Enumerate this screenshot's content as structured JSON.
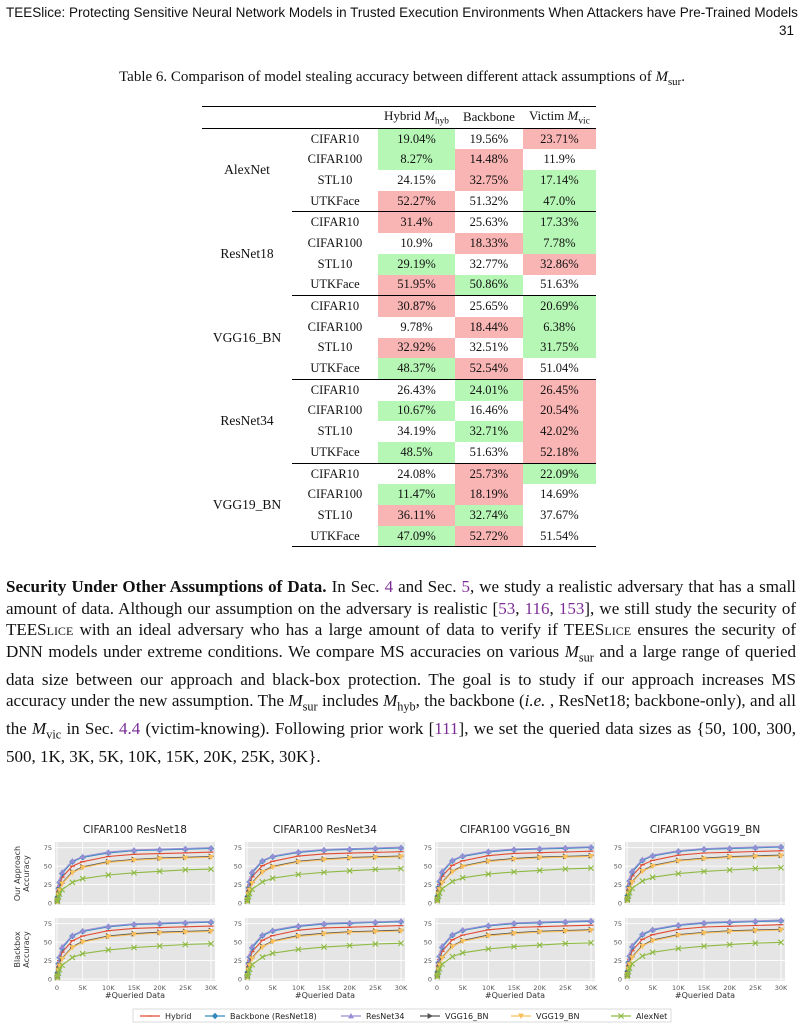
{
  "header": {
    "title": "TEESlice: Protecting Sensitive Neural Network Models in Trusted Execution Environments When Attackers have Pre-Trained Models",
    "page": "31"
  },
  "table": {
    "caption": "Table 6.  Comparison of model stealing accuracy between different attack assumptions of M_sur.",
    "columns": [
      "Hybrid M_hyb",
      "Backbone",
      "Victim M_vic"
    ],
    "groups": [
      {
        "model": "AlexNet",
        "rows": [
          {
            "dataset": "CIFAR10",
            "values": [
              "19.04%",
              "19.56%",
              "23.71%"
            ],
            "colors": [
              "g",
              "",
              "r"
            ]
          },
          {
            "dataset": "CIFAR100",
            "values": [
              "8.27%",
              "14.48%",
              "11.9%"
            ],
            "colors": [
              "g",
              "r",
              ""
            ]
          },
          {
            "dataset": "STL10",
            "values": [
              "24.15%",
              "32.75%",
              "17.14%"
            ],
            "colors": [
              "",
              "r",
              "g"
            ]
          },
          {
            "dataset": "UTKFace",
            "values": [
              "52.27%",
              "51.32%",
              "47.0%"
            ],
            "colors": [
              "r",
              "",
              "g"
            ]
          }
        ]
      },
      {
        "model": "ResNet18",
        "rows": [
          {
            "dataset": "CIFAR10",
            "values": [
              "31.4%",
              "25.63%",
              "17.33%"
            ],
            "colors": [
              "r",
              "",
              "g"
            ]
          },
          {
            "dataset": "CIFAR100",
            "values": [
              "10.9%",
              "18.33%",
              "7.78%"
            ],
            "colors": [
              "",
              "r",
              "g"
            ]
          },
          {
            "dataset": "STL10",
            "values": [
              "29.19%",
              "32.77%",
              "32.86%"
            ],
            "colors": [
              "g",
              "",
              "r"
            ]
          },
          {
            "dataset": "UTKFace",
            "values": [
              "51.95%",
              "50.86%",
              "51.63%"
            ],
            "colors": [
              "r",
              "g",
              ""
            ]
          }
        ]
      },
      {
        "model": "VGG16_BN",
        "rows": [
          {
            "dataset": "CIFAR10",
            "values": [
              "30.87%",
              "25.65%",
              "20.69%"
            ],
            "colors": [
              "r",
              "",
              "g"
            ]
          },
          {
            "dataset": "CIFAR100",
            "values": [
              "9.78%",
              "18.44%",
              "6.38%"
            ],
            "colors": [
              "",
              "r",
              "g"
            ]
          },
          {
            "dataset": "STL10",
            "values": [
              "32.92%",
              "32.51%",
              "31.75%"
            ],
            "colors": [
              "r",
              "",
              "g"
            ]
          },
          {
            "dataset": "UTKFace",
            "values": [
              "48.37%",
              "52.54%",
              "51.04%"
            ],
            "colors": [
              "g",
              "r",
              ""
            ]
          }
        ]
      },
      {
        "model": "ResNet34",
        "rows": [
          {
            "dataset": "CIFAR10",
            "values": [
              "26.43%",
              "24.01%",
              "26.45%"
            ],
            "colors": [
              "",
              "g",
              "r"
            ]
          },
          {
            "dataset": "CIFAR100",
            "values": [
              "10.67%",
              "16.46%",
              "20.54%"
            ],
            "colors": [
              "g",
              "",
              "r"
            ]
          },
          {
            "dataset": "STL10",
            "values": [
              "34.19%",
              "32.71%",
              "42.02%"
            ],
            "colors": [
              "",
              "g",
              "r"
            ]
          },
          {
            "dataset": "UTKFace",
            "values": [
              "48.5%",
              "51.63%",
              "52.18%"
            ],
            "colors": [
              "g",
              "",
              "r"
            ]
          }
        ]
      },
      {
        "model": "VGG19_BN",
        "rows": [
          {
            "dataset": "CIFAR10",
            "values": [
              "24.08%",
              "25.73%",
              "22.09%"
            ],
            "colors": [
              "",
              "r",
              "g"
            ]
          },
          {
            "dataset": "CIFAR100",
            "values": [
              "11.47%",
              "18.19%",
              "14.69%"
            ],
            "colors": [
              "g",
              "r",
              ""
            ]
          },
          {
            "dataset": "STL10",
            "values": [
              "36.11%",
              "32.74%",
              "37.67%"
            ],
            "colors": [
              "r",
              "g",
              ""
            ]
          },
          {
            "dataset": "UTKFace",
            "values": [
              "47.09%",
              "52.72%",
              "51.54%"
            ],
            "colors": [
              "g",
              "r",
              ""
            ]
          }
        ]
      }
    ]
  },
  "paragraph": {
    "heading": "Security Under Other Assumptions of Data.",
    "t1": " In Sec. ",
    "r1": "4",
    "t2": " and Sec. ",
    "r2": "5",
    "t3": ", we study a realistic adversary that has a small amount of data. Although our assumption on the adversary is realistic [",
    "r3": "53",
    "t4": ", ",
    "r4": "116",
    "t5": ", ",
    "r5": "153",
    "t6": "], we still study the security of TEESlice with an ideal adversary who has a large amount of data to verify if TEESlice ensures the security of DNN models under extreme conditions. We compare MS accuracies on various M_sur and a large range of queried data size between our approach and black-box protection. The goal is to study if our approach increases MS accuracy under the new assumption. The M_sur includes M_hyb, the backbone (i.e. , ResNet18; backbone-only), and all the M_vic in Sec. ",
    "r6": "4.4",
    "t7": " (victim-knowing). Following prior work [",
    "r7": "111",
    "t8": "], we set the queried data sizes as {50, 100, 300, 500, 1K, 3K, 5K, 10K, 15K, 20K, 25K, 30K}."
  },
  "chart_data": {
    "type": "line",
    "panel_titles": [
      "CIFAR100 ResNet18",
      "CIFAR100 ResNet34",
      "CIFAR100 VGG16_BN",
      "CIFAR100 VGG19_BN"
    ],
    "row_labels": [
      "Our Approach Accuracy",
      "Blackbox Accuracy"
    ],
    "xlabel": "#Queried Data",
    "x": [
      50,
      100,
      300,
      500,
      1000,
      3000,
      5000,
      10000,
      15000,
      20000,
      25000,
      30000
    ],
    "xticks": [
      "0",
      "5K",
      "10K",
      "15K",
      "20K",
      "25K",
      "30K"
    ],
    "yticks": [
      "0",
      "25",
      "50",
      "75"
    ],
    "ylim": [
      0,
      80
    ],
    "xlim": [
      0,
      30000
    ],
    "legend_position": "bottom",
    "colors": {
      "Hybrid": "#e24a33",
      "Backbone (ResNet18)": "#348abd",
      "ResNet34": "#988ed5",
      "VGG16_BN": "#555555",
      "VGG19_BN": "#fbc15e",
      "AlexNet": "#8eba42"
    },
    "markers": {
      "Hybrid": "line",
      "Backbone (ResNet18)": "diamond",
      "ResNet34": "triangle-up",
      "VGG16_BN": "triangle-right",
      "VGG19_BN": "triangle-down",
      "AlexNet": "x"
    },
    "series": [
      {
        "name": "Hybrid",
        "values": [
          3,
          6,
          16,
          24,
          35,
          50,
          56,
          63,
          66,
          67,
          68,
          69
        ]
      },
      {
        "name": "Backbone (ResNet18)",
        "values": [
          4,
          8,
          20,
          28,
          40,
          56,
          62,
          68,
          71,
          72,
          73,
          74
        ]
      },
      {
        "name": "ResNet34",
        "values": [
          4,
          8,
          21,
          30,
          42,
          57,
          63,
          69,
          72,
          73,
          74,
          75
        ]
      },
      {
        "name": "VGG16_BN",
        "values": [
          2,
          5,
          12,
          18,
          27,
          42,
          49,
          56,
          59,
          61,
          62,
          63
        ]
      },
      {
        "name": "VGG19_BN",
        "values": [
          2,
          4,
          11,
          17,
          26,
          41,
          48,
          55,
          58,
          60,
          61,
          62
        ]
      },
      {
        "name": "AlexNet",
        "values": [
          2,
          3,
          8,
          12,
          18,
          28,
          33,
          38,
          41,
          43,
          45,
          46
        ]
      }
    ]
  }
}
